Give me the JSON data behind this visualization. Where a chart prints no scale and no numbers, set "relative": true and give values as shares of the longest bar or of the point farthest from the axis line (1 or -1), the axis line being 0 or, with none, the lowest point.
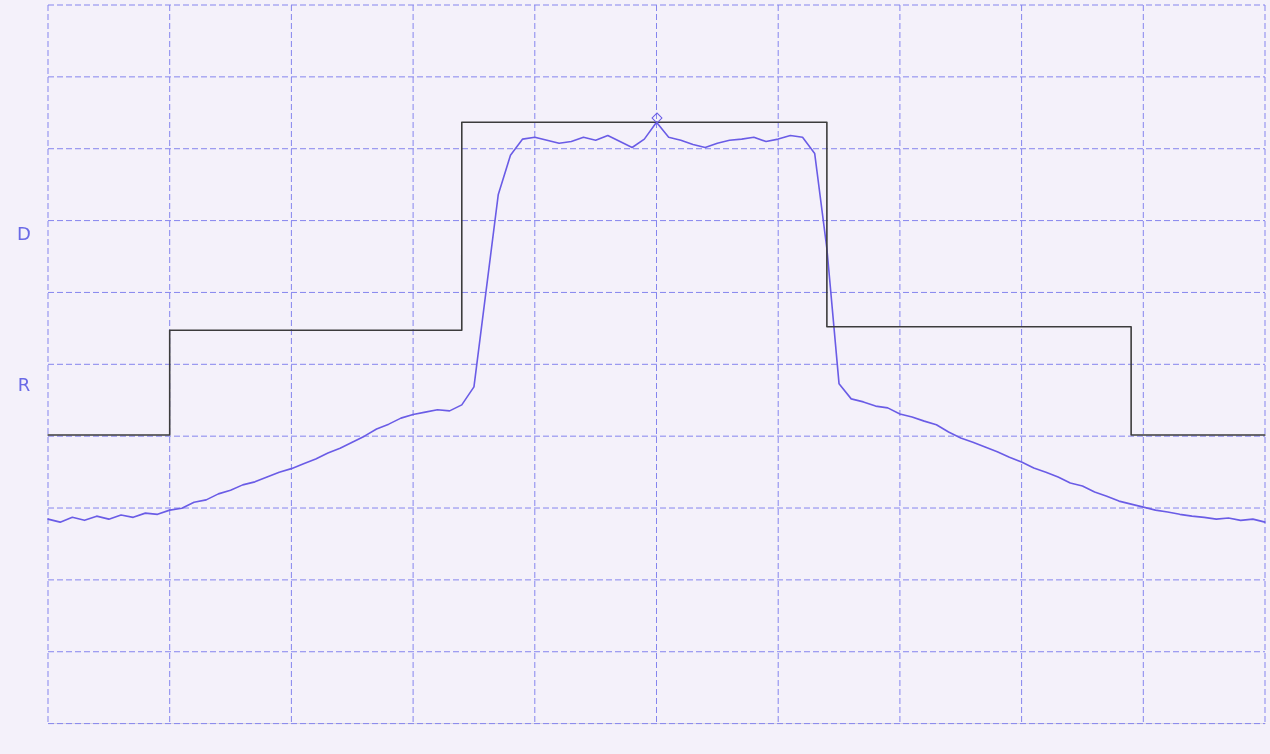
{
  "chart_data": {
    "type": "line",
    "relative": true,
    "grid": true,
    "legend": false,
    "annotations": [
      "D",
      "R"
    ],
    "categories": [
      null,
      null,
      null,
      null,
      null,
      null,
      null,
      null,
      null,
      null,
      null,
      null,
      null,
      null,
      null,
      null,
      null,
      null,
      null,
      null,
      null,
      null,
      null,
      null,
      null,
      null,
      null,
      null,
      null,
      null,
      null,
      null,
      null,
      null,
      null,
      null,
      null,
      null,
      null,
      null,
      null,
      null,
      null,
      null,
      null,
      null,
      null,
      null,
      null,
      null,
      null,
      null,
      null,
      null,
      null,
      null,
      null,
      null,
      null,
      null,
      null,
      null,
      null,
      null,
      null,
      null,
      null,
      null,
      null,
      null,
      null,
      null,
      null,
      null,
      null,
      null,
      null,
      null,
      null,
      null,
      null,
      null,
      null,
      null,
      null,
      null,
      null,
      null,
      null,
      null,
      null,
      null,
      null,
      null,
      null,
      null,
      null,
      null,
      null,
      null,
      null
    ],
    "series": [
      {
        "type": "step",
        "color": "#3c3c3c",
        "marker": "none",
        "line_style": "solid",
        "values": [
          0.48,
          0.48,
          0.48,
          0.48,
          0.48,
          0.48,
          0.48,
          0.48,
          0.48,
          0.48,
          0.48,
          0.654,
          0.654,
          0.654,
          0.654,
          0.654,
          0.654,
          0.654,
          0.654,
          0.654,
          0.654,
          0.654,
          0.654,
          0.654,
          0.654,
          0.654,
          0.654,
          0.654,
          0.654,
          0.654,
          0.654,
          0.654,
          0.654,
          0.654,
          0.654,
          1.0,
          1.0,
          1.0,
          1.0,
          1.0,
          1.0,
          1.0,
          1.0,
          1.0,
          1.0,
          1.0,
          1.0,
          1.0,
          1.0,
          1.0,
          1.0,
          1.0,
          1.0,
          1.0,
          1.0,
          1.0,
          1.0,
          1.0,
          1.0,
          1.0,
          1.0,
          1.0,
          1.0,
          1.0,
          1.0,
          0.66,
          0.66,
          0.66,
          0.66,
          0.66,
          0.66,
          0.66,
          0.66,
          0.66,
          0.66,
          0.66,
          0.66,
          0.66,
          0.66,
          0.66,
          0.66,
          0.66,
          0.66,
          0.66,
          0.66,
          0.66,
          0.66,
          0.66,
          0.66,
          0.66,
          0.48,
          0.48,
          0.48,
          0.48,
          0.48,
          0.48,
          0.48,
          0.48,
          0.48,
          0.48,
          0.48
        ]
      },
      {
        "type": "line",
        "color": "#6a5ce6",
        "marker": "none",
        "line_style": "solid",
        "values": [
          0.34,
          0.335,
          0.343,
          0.338,
          0.345,
          0.34,
          0.347,
          0.343,
          0.35,
          0.348,
          0.355,
          0.358,
          0.368,
          0.372,
          0.382,
          0.388,
          0.397,
          0.402,
          0.41,
          0.418,
          0.424,
          0.432,
          0.44,
          0.45,
          0.458,
          0.468,
          0.478,
          0.49,
          0.498,
          0.508,
          0.514,
          0.518,
          0.522,
          0.52,
          0.53,
          0.56,
          0.72,
          0.88,
          0.945,
          0.972,
          0.975,
          0.97,
          0.965,
          0.968,
          0.975,
          0.97,
          0.978,
          0.968,
          0.958,
          0.972,
          1.0,
          0.975,
          0.97,
          0.963,
          0.958,
          0.965,
          0.97,
          0.972,
          0.975,
          0.968,
          0.972,
          0.978,
          0.975,
          0.948,
          0.79,
          0.565,
          0.54,
          0.535,
          0.528,
          0.525,
          0.515,
          0.51,
          0.503,
          0.497,
          0.485,
          0.475,
          0.468,
          0.46,
          0.452,
          0.443,
          0.435,
          0.425,
          0.418,
          0.41,
          0.4,
          0.395,
          0.385,
          0.378,
          0.37,
          0.365,
          0.36,
          0.355,
          0.352,
          0.348,
          0.345,
          0.343,
          0.34,
          0.342,
          0.338,
          0.34,
          0.335
        ]
      }
    ]
  }
}
